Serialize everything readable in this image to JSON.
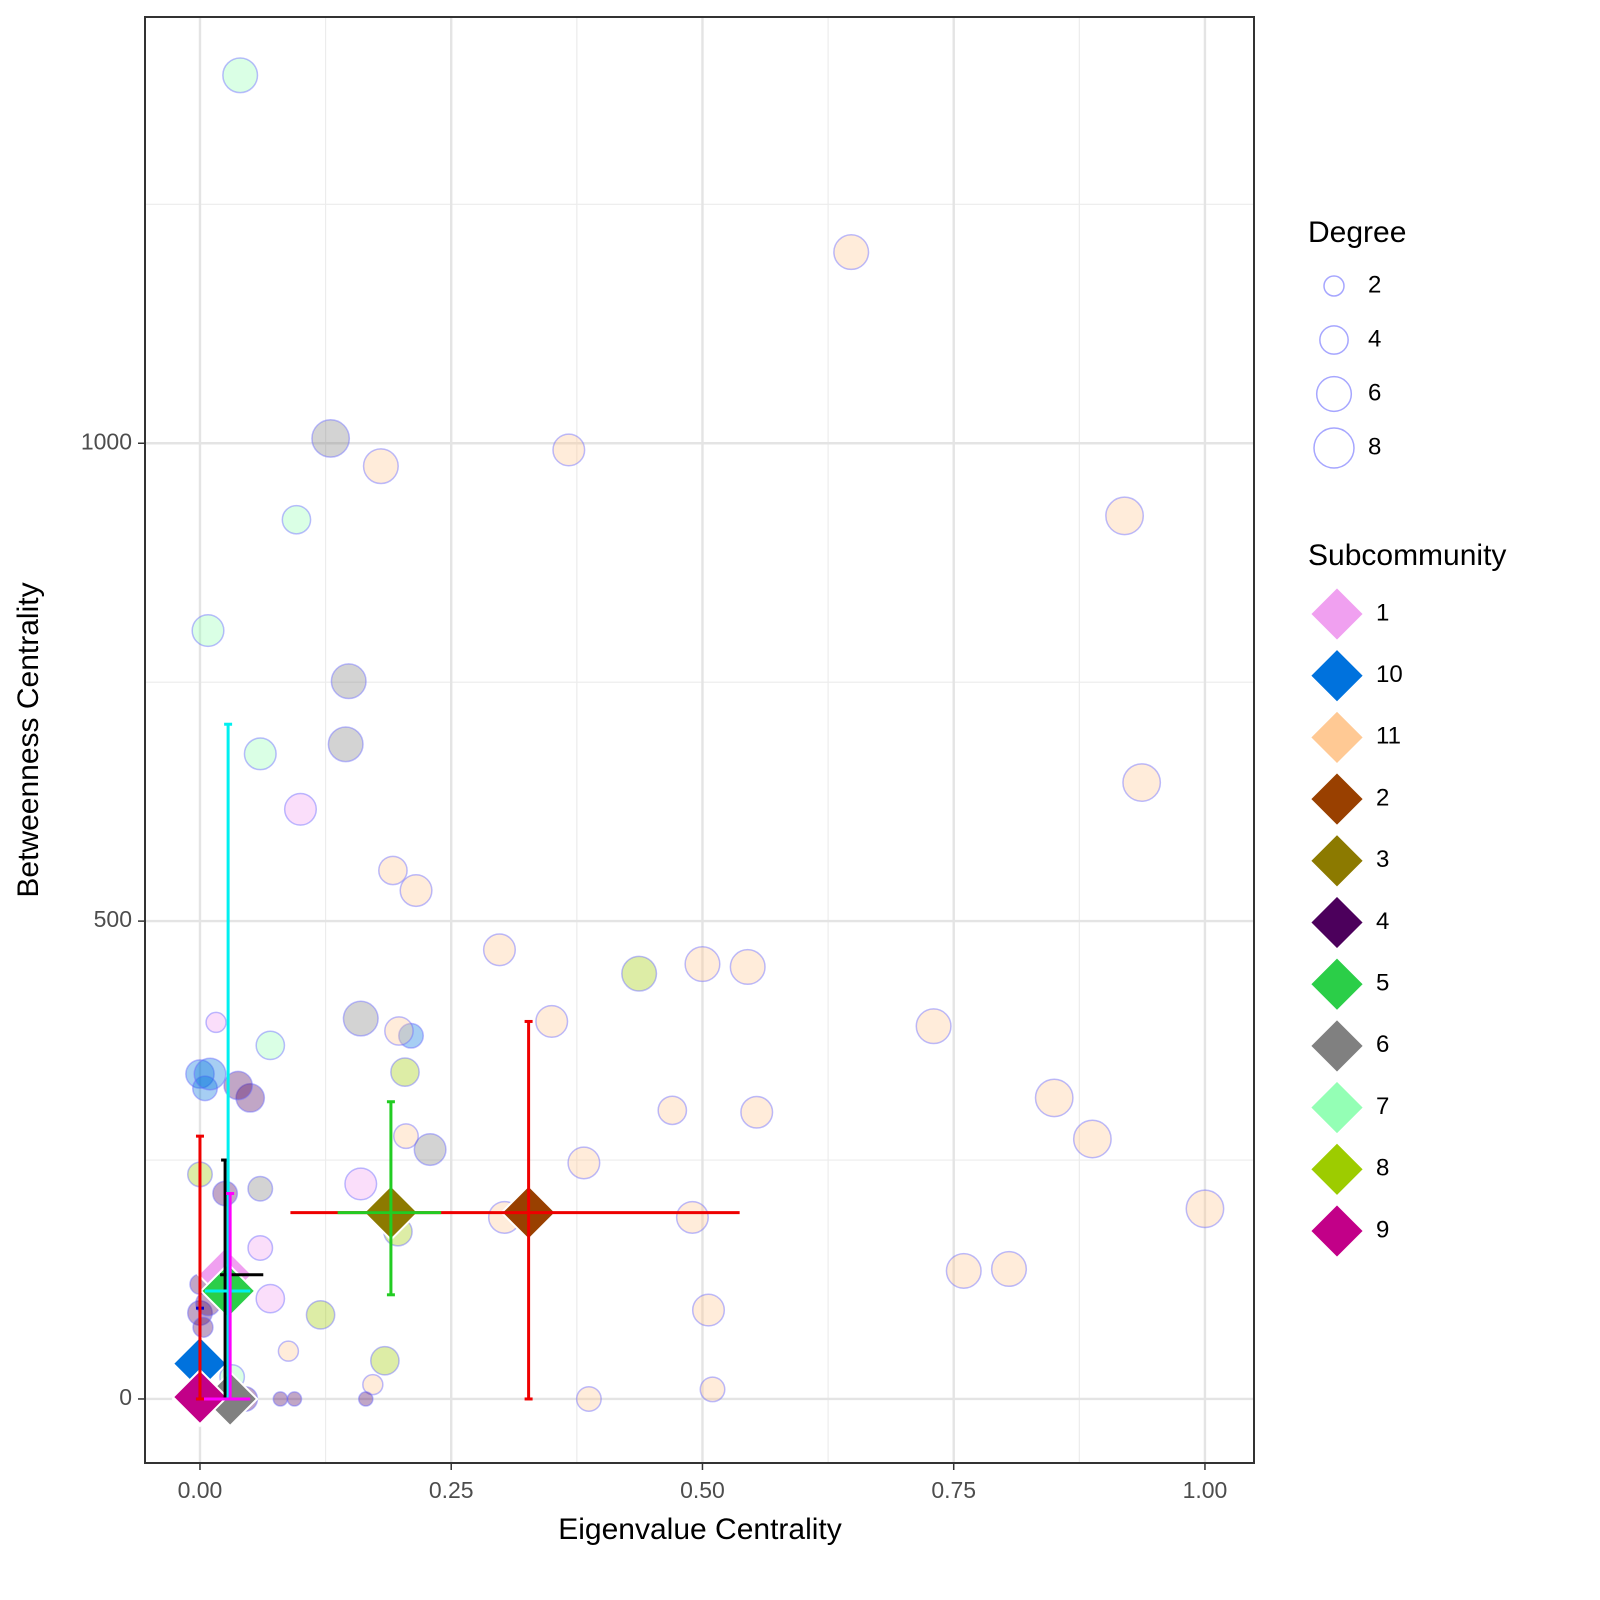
{
  "chart_data": {
    "type": "scatter",
    "x_label": "Eigenvalue Centrality",
    "y_label": "Betweenness Centrality",
    "xlim": [
      -0.0547,
      1.0488
    ],
    "ylim": [
      -67,
      1446
    ],
    "xticks": [
      {
        "value": 0,
        "label": "0.00"
      },
      {
        "value": 0.25,
        "label": "0.25"
      },
      {
        "value": 0.5,
        "label": "0.50"
      },
      {
        "value": 0.75,
        "label": "0.75"
      },
      {
        "value": 1,
        "label": "1.00"
      }
    ],
    "yticks": [
      0,
      500,
      1000
    ],
    "minor_xticks": [
      0.125,
      0.375,
      0.625,
      0.875
    ],
    "minor_yticks": [
      250,
      750,
      1250
    ],
    "grid": true,
    "size_legend_title": "Degree",
    "size_legend": [
      2,
      4,
      6,
      8
    ],
    "color_legend_title": "Subcommunity",
    "point_stroke": "#6a6aff",
    "series": [
      {
        "name": "1",
        "color": "#f0a0f0",
        "mean_x": 0.025,
        "mean_y": 130,
        "xmin": 0.02,
        "xmax": 0.063,
        "ymin": 0,
        "ymax": 250,
        "errorbar_color": "#000000",
        "points": {
          "x": [
            0.1,
            0.016,
            0.16,
            0.06,
            0.07
          ],
          "y": [
            617,
            394,
            225,
            158,
            105
          ],
          "degree": [
            5,
            2,
            5,
            3,
            4
          ]
        }
      },
      {
        "name": "10",
        "color": "#0072dd",
        "mean_x": 0,
        "mean_y": 37,
        "xmin": null,
        "xmax": null,
        "ymin": 0,
        "ymax": 95,
        "errorbar_color": "#0000cc",
        "points": {
          "x": [
            0.21,
            0.0,
            0.005,
            0.01
          ],
          "y": [
            380,
            340,
            325,
            340
          ],
          "degree": [
            3,
            4,
            3,
            5
          ]
        }
      },
      {
        "name": "11",
        "color": "#ffc994",
        "mean_x": null,
        "mean_y": null,
        "xmin": null,
        "xmax": null,
        "ymin": null,
        "ymax": null,
        "errorbar_color": null,
        "points": {
          "x": [
            0.648,
            0.367,
            0.18,
            0.92,
            0.937,
            0.192,
            0.215,
            0.298,
            0.5,
            0.545,
            0.35,
            0.73,
            0.47,
            0.554,
            0.85,
            0.888,
            0.382,
            1.0,
            0.303,
            0.49,
            0.76,
            0.805,
            0.506,
            0.205,
            0.198,
            0.088,
            0.172,
            0.387,
            0.51
          ],
          "y": [
            1200,
            993,
            976,
            924,
            645,
            553,
            532,
            470,
            455,
            452,
            395,
            390,
            302,
            300,
            315,
            272,
            247,
            199,
            190,
            190,
            134,
            136,
            93,
            275,
            385,
            50,
            15,
            0,
            10
          ],
          "degree": [
            6,
            5,
            6,
            7,
            7,
            4,
            5,
            5,
            6,
            6,
            5,
            6,
            4,
            5,
            7,
            7,
            5,
            7,
            5,
            5,
            6,
            6,
            5,
            3,
            4,
            2,
            2,
            3,
            3
          ]
        }
      },
      {
        "name": "2",
        "color": "#994000",
        "mean_x": 0.327,
        "mean_y": 195,
        "xmin": 0.09,
        "xmax": 0.537,
        "ymin": 0,
        "ymax": 395,
        "errorbar_color": "#ee0000"
      },
      {
        "name": "3",
        "color": "#8c7a00",
        "mean_x": 0.19,
        "mean_y": 195,
        "xmin": 0.137,
        "xmax": 0.24,
        "ymin": 109,
        "ymax": 311,
        "errorbar_color": "#22cc22"
      },
      {
        "name": "4",
        "color": "#4c005c",
        "mean_x": 0,
        "mean_y": 0,
        "xmin": null,
        "xmax": null,
        "ymin": null,
        "ymax": null,
        "errorbar_color": null,
        "points": {
          "x": [
            0.05,
            0.025,
            0.0,
            0.008,
            0.0,
            0.003,
            0.08,
            0.094,
            0.165,
            0.038,
            0.045
          ],
          "y": [
            315,
            215,
            90,
            100,
            120,
            75,
            0,
            0,
            0,
            328,
            0
          ],
          "degree": [
            4,
            3,
            3,
            3,
            2,
            2,
            1,
            1,
            1,
            4,
            3
          ]
        }
      },
      {
        "name": "5",
        "color": "#2bce48",
        "mean_x": 0.028,
        "mean_y": 113,
        "xmin": 0.005,
        "xmax": 0.05,
        "ymin": 0,
        "ymax": 706,
        "errorbar_color": "#00f0f0"
      },
      {
        "name": "6",
        "color": "#808080",
        "mean_x": 0.03,
        "mean_y": 0,
        "xmin": 0,
        "xmax": 0.05,
        "ymin": 0,
        "ymax": 215,
        "errorbar_color": "#ff00ff",
        "points": {
          "x": [
            0.13,
            0.148,
            0.145,
            0.16,
            0.229,
            0.06
          ],
          "y": [
            1005,
            751,
            685,
            398,
            261,
            220
          ],
          "degree": [
            7,
            6,
            6,
            6,
            5,
            3
          ]
        }
      },
      {
        "name": "7",
        "color": "#94ffb5",
        "mean_x": null,
        "mean_y": null,
        "xmin": null,
        "xmax": null,
        "ymin": null,
        "ymax": null,
        "errorbar_color": null,
        "points": {
          "x": [
            0.04,
            0.096,
            0.008,
            0.06,
            0.07,
            0.032
          ],
          "y": [
            1385,
            920,
            804,
            675,
            370,
            23
          ],
          "degree": [
            6,
            4,
            5,
            5,
            4,
            3
          ]
        }
      },
      {
        "name": "8",
        "color": "#9dcc00",
        "mean_x": null,
        "mean_y": null,
        "xmin": null,
        "xmax": null,
        "ymin": null,
        "ymax": null,
        "errorbar_color": null,
        "points": {
          "x": [
            0.437,
            0.204,
            0.197,
            0.12,
            0.184,
            0.0
          ],
          "y": [
            445,
            342,
            175,
            88,
            40,
            235
          ],
          "degree": [
            6,
            4,
            4,
            4,
            4,
            3
          ]
        }
      },
      {
        "name": "9",
        "color": "#c20088",
        "mean_x": 0,
        "mean_y": 2,
        "xmin": null,
        "xmax": null,
        "ymin": 0,
        "ymax": 275,
        "errorbar_color": "#ee0000"
      }
    ]
  }
}
